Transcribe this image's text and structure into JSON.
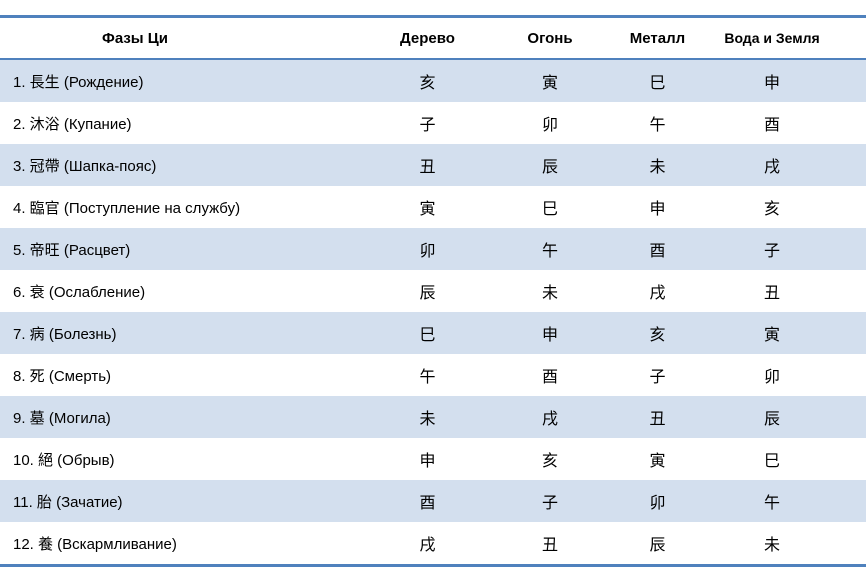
{
  "colors": {
    "border": "#4f81bd",
    "band": "#d3dfee",
    "text": "#000000"
  },
  "table": {
    "headers": {
      "phase": "Фазы Ци",
      "wood": "Дерево",
      "fire": "Огонь",
      "metal": "Металл",
      "water_earth": "Вода и Земля"
    },
    "rows": [
      {
        "phase": "1. 長生 (Рождение)",
        "values": [
          "亥",
          "寅",
          "巳",
          "申"
        ]
      },
      {
        "phase": "2. 沐浴 (Купание)",
        "values": [
          "子",
          "卯",
          "午",
          "酉"
        ]
      },
      {
        "phase": "3. 冠帶 (Шапка-пояс)",
        "values": [
          "丑",
          "辰",
          "未",
          "戌"
        ]
      },
      {
        "phase": "4. 臨官 (Поступление на службу)",
        "values": [
          "寅",
          "巳",
          "申",
          "亥"
        ]
      },
      {
        "phase": "5. 帝旺 (Расцвет)",
        "values": [
          "卯",
          "午",
          "酉",
          "子"
        ]
      },
      {
        "phase": "6. 衰 (Ослабление)",
        "values": [
          "辰",
          "未",
          "戌",
          "丑"
        ]
      },
      {
        "phase": "7. 病 (Болезнь)",
        "values": [
          "巳",
          "申",
          "亥",
          "寅"
        ]
      },
      {
        "phase": "8. 死 (Смерть)",
        "values": [
          "午",
          "酉",
          "子",
          "卯"
        ]
      },
      {
        "phase": "9. 墓 (Могила)",
        "values": [
          "未",
          "戌",
          "丑",
          "辰"
        ]
      },
      {
        "phase": "10. 絕 (Обрыв)",
        "values": [
          "申",
          "亥",
          "寅",
          "巳"
        ]
      },
      {
        "phase": "11. 胎 (Зачатие)",
        "values": [
          "酉",
          "子",
          "卯",
          "午"
        ]
      },
      {
        "phase": "12. 養 (Вскармливание)",
        "values": [
          "戌",
          "丑",
          "辰",
          "未"
        ]
      }
    ]
  }
}
